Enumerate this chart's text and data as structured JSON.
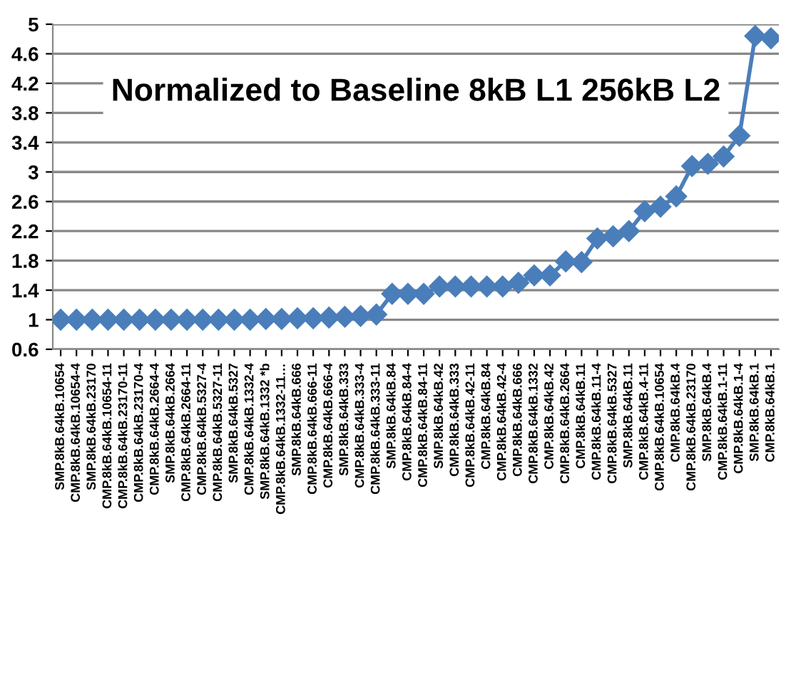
{
  "chart_data": {
    "type": "line",
    "title": "Normalized to Baseline 8kB L1 256kB L2",
    "categories": [
      "SMP.8kB.64kB.10654",
      "CMP.8kB.64kB.10654-4",
      "SMP.8kB.64kB.23170",
      "CMP.8kB.64kB.10654-11",
      "CMP.8kB.64kB.23170-11",
      "CMP.8kB.64kB.23170-4",
      "CMP.8kB.64kB.2664-4",
      "SMP.8kB.64kB.2664",
      "CMP.8kB.64kB.2664-11",
      "CMP.8kB.64kB.5327-4",
      "CMP.8kB.64kB.5327-11",
      "SMP.8kB.64kB.5327",
      "CMP.8kB.64kB.1332-4",
      "SMP.8kB.64kB.1332 *b",
      "CMP.8kB.64kB.1332-11…",
      "SMP.8kB.64kB.666",
      "CMP.8kB.64kB.666-11",
      "CMP.8kB.64kB.666-4",
      "SMP.8kB.64kB.333",
      "CMP.8kB.64kB.333-4",
      "CMP.8kB.64kB.333-11",
      "SMP.8kB.64kB.84",
      "CMP.8kB.64kB.84-4",
      "CMP.8kB.64kB.84-11",
      "SMP.8kB.64kB.42",
      "CMP.8kB.64kB.333",
      "CMP.8kB.64kB.42-11",
      "CMP.8kB.64kB.84",
      "CMP.8kB.64kB.42-4",
      "CMP.8kB.64kB.666",
      "CMP.8kB.64kB.1332",
      "CMP.8kB.64kB.42",
      "CMP.8kB.64kB.2664",
      "CMP.8kB.64kB.11",
      "CMP.8kB.64kB.11-4",
      "CMP.8kB.64kB.5327",
      "SMP.8kB.64kB.11",
      "CMP.8kB.64kB.4-11",
      "CMP.8kB.64kB.10654",
      "CMP.8kB.64kB.4",
      "CMP.8kB.64kB.23170",
      "SMP.8kB.64kB.4",
      "CMP.8kB.64kB.1-11",
      "CMP.8kB.64kB.1-4",
      "SMP.8kB.64kB.1",
      "CMP.8kB.64kB.1"
    ],
    "series": [
      {
        "color": "#4a7ebb",
        "values": [
          1.0,
          1.0,
          1.0,
          1.0,
          1.0,
          1.0,
          1.0,
          1.0,
          1.0,
          1.0,
          1.0,
          1.0,
          1.0,
          1.01,
          1.01,
          1.02,
          1.02,
          1.03,
          1.04,
          1.05,
          1.07,
          1.35,
          1.35,
          1.35,
          1.45,
          1.45,
          1.45,
          1.45,
          1.45,
          1.5,
          1.6,
          1.6,
          1.79,
          1.78,
          2.1,
          2.13,
          2.2,
          2.47,
          2.53,
          2.67,
          3.08,
          3.11,
          3.21,
          3.49,
          4.84,
          4.81
        ]
      }
    ],
    "ylim": [
      0.6,
      5
    ],
    "yticks": [
      0.6,
      1,
      1.4,
      1.8,
      2.2,
      2.6,
      3,
      3.4,
      3.8,
      4.2,
      4.6,
      5
    ],
    "grid": "y",
    "marker": "diamond",
    "line_style": "solid"
  }
}
